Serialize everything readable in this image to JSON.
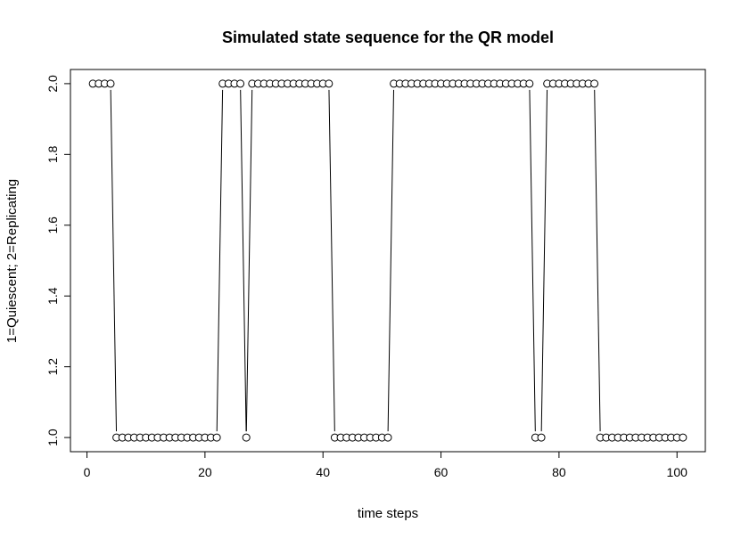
{
  "chart_data": {
    "type": "line",
    "subtype": "both-points-and-lines",
    "title": "Simulated state sequence for the QR model",
    "xlabel": "time steps",
    "ylabel": "1=Quiescent; 2=Replicating",
    "xlim": [
      -2.8,
      104.8
    ],
    "ylim": [
      0.96,
      2.04
    ],
    "xticks": [
      0,
      20,
      40,
      60,
      80,
      100
    ],
    "xtick_labels": [
      "0",
      "20",
      "40",
      "60",
      "80",
      "100"
    ],
    "yticks": [
      1.0,
      1.2,
      1.4,
      1.6,
      1.8,
      2.0
    ],
    "ytick_labels": [
      "1.0",
      "1.2",
      "1.4",
      "1.6",
      "1.8",
      "2.0"
    ],
    "grid": false,
    "legend": "none",
    "series": [
      {
        "name": "state",
        "x": [
          1,
          2,
          3,
          4,
          5,
          6,
          7,
          8,
          9,
          10,
          11,
          12,
          13,
          14,
          15,
          16,
          17,
          18,
          19,
          20,
          21,
          22,
          23,
          24,
          25,
          26,
          27,
          28,
          29,
          30,
          31,
          32,
          33,
          34,
          35,
          36,
          37,
          38,
          39,
          40,
          41,
          42,
          43,
          44,
          45,
          46,
          47,
          48,
          49,
          50,
          51,
          52,
          53,
          54,
          55,
          56,
          57,
          58,
          59,
          60,
          61,
          62,
          63,
          64,
          65,
          66,
          67,
          68,
          69,
          70,
          71,
          72,
          73,
          74,
          75,
          76,
          77,
          78,
          79,
          80,
          81,
          82,
          83,
          84,
          85,
          86,
          87,
          88,
          89,
          90,
          91,
          92,
          93,
          94,
          95,
          96,
          97,
          98,
          99,
          100,
          101
        ],
        "values": [
          2,
          2,
          2,
          2,
          1,
          1,
          1,
          1,
          1,
          1,
          1,
          1,
          1,
          1,
          1,
          1,
          1,
          1,
          1,
          1,
          1,
          1,
          2,
          2,
          2,
          2,
          1,
          2,
          2,
          2,
          2,
          2,
          2,
          2,
          2,
          2,
          2,
          2,
          2,
          2,
          2,
          1,
          1,
          1,
          1,
          1,
          1,
          1,
          1,
          1,
          1,
          2,
          2,
          2,
          2,
          2,
          2,
          2,
          2,
          2,
          2,
          2,
          2,
          2,
          2,
          2,
          2,
          2,
          2,
          2,
          2,
          2,
          2,
          2,
          2,
          1,
          1,
          2,
          2,
          2,
          2,
          2,
          2,
          2,
          2,
          2,
          1,
          1,
          1,
          1,
          1,
          1,
          1,
          1,
          1,
          1,
          1,
          1,
          1,
          1,
          1
        ]
      }
    ]
  }
}
